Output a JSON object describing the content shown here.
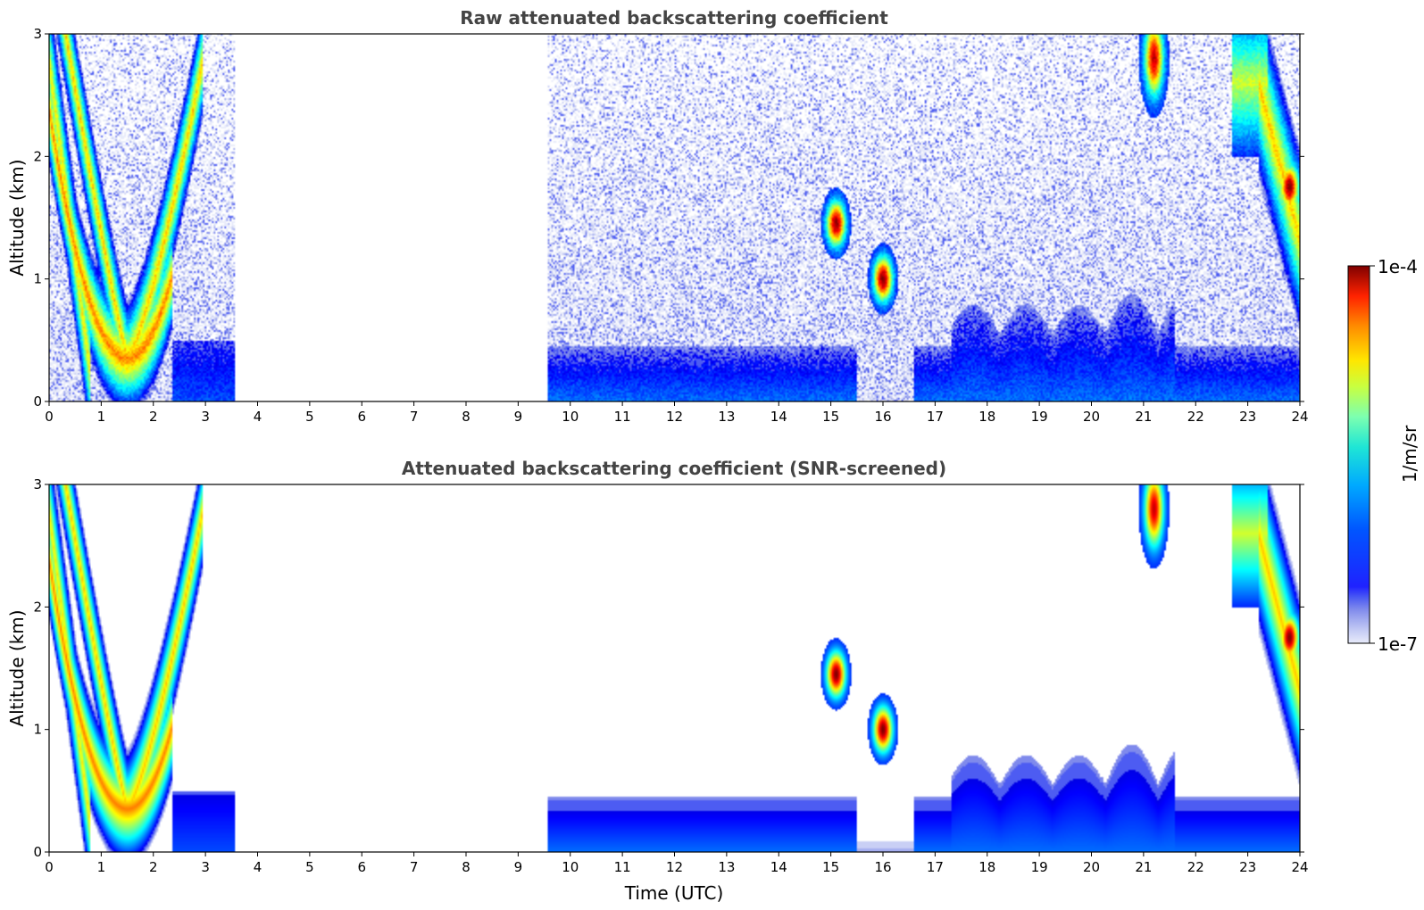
{
  "figure": {
    "colorbar": {
      "label": "1/m/sr",
      "max_label": "1e-4",
      "min_label": "1e-7",
      "scale": "log",
      "range": [
        1e-07,
        0.0001
      ],
      "colormap": "jet",
      "low_end_colors": [
        "#e8ebfa",
        "#c9cff5",
        "#a5aef0",
        "#7f8aec",
        "#4d5cf2"
      ]
    }
  },
  "chart_data": [
    {
      "type": "heatmap",
      "title": "Raw attenuated backscattering coefficient",
      "xlabel": "",
      "ylabel": "Altitude (km)",
      "xlim": [
        0,
        24
      ],
      "ylim": [
        0,
        3
      ],
      "x_ticks": [
        "0",
        "1",
        "2",
        "3",
        "4",
        "5",
        "6",
        "7",
        "8",
        "9",
        "10",
        "11",
        "12",
        "13",
        "14",
        "15",
        "16",
        "17",
        "18",
        "19",
        "20",
        "21",
        "22",
        "23",
        "24"
      ],
      "y_ticks": [
        "0",
        "1",
        "2",
        "3"
      ],
      "data_gaps_utc": [
        [
          3.55,
          9.55
        ]
      ],
      "features": [
        {
          "kind": "boundary_layer",
          "t_start": 0.0,
          "t_end": 3.55,
          "top_km": 0.35
        },
        {
          "kind": "boundary_layer",
          "t_start": 9.55,
          "t_end": 24.0,
          "top_km": 0.5
        },
        {
          "kind": "residual_layer",
          "t_start": 17.5,
          "t_end": 21.5,
          "top_km": 0.85
        },
        {
          "kind": "cloud",
          "t": 15.1,
          "alt_km": 1.45,
          "log10_max": -4.0
        },
        {
          "kind": "cloud",
          "t": 16.0,
          "alt_km": 1.0,
          "log10_max": -4.0
        },
        {
          "kind": "cloud",
          "t": 21.2,
          "alt_km": 2.8,
          "log10_max": -4.2
        },
        {
          "kind": "cloud",
          "t": 23.8,
          "alt_km": 1.75,
          "log10_max": -4.0
        }
      ]
    },
    {
      "type": "heatmap",
      "title": "Attenuated backscattering coefficient (SNR-screened)",
      "xlabel": "Time (UTC)",
      "ylabel": "Altitude (km)",
      "xlim": [
        0,
        24
      ],
      "ylim": [
        0,
        3
      ],
      "x_ticks": [
        "0",
        "1",
        "2",
        "3",
        "4",
        "5",
        "6",
        "7",
        "8",
        "9",
        "10",
        "11",
        "12",
        "13",
        "14",
        "15",
        "16",
        "17",
        "18",
        "19",
        "20",
        "21",
        "22",
        "23",
        "24"
      ],
      "y_ticks": [
        "0",
        "1",
        "2",
        "3"
      ],
      "data_gaps_utc": [
        [
          3.55,
          9.55
        ]
      ],
      "features": [
        {
          "kind": "boundary_layer",
          "t_start": 0.0,
          "t_end": 3.55,
          "top_km": 0.55
        },
        {
          "kind": "boundary_layer",
          "t_start": 9.55,
          "t_end": 24.0,
          "top_km": 0.6
        },
        {
          "kind": "residual_layer",
          "t_start": 17.3,
          "t_end": 21.5,
          "top_km": 0.9
        },
        {
          "kind": "cloud",
          "t": 15.1,
          "alt_km": 1.45,
          "log10_max": -3.9
        },
        {
          "kind": "cloud",
          "t": 16.0,
          "alt_km": 1.0,
          "log10_max": -3.9
        },
        {
          "kind": "cloud",
          "t": 21.2,
          "alt_km": 2.8,
          "log10_max": -4.2
        },
        {
          "kind": "cloud",
          "t": 23.8,
          "alt_km": 1.75,
          "log10_max": -3.9
        }
      ]
    }
  ]
}
